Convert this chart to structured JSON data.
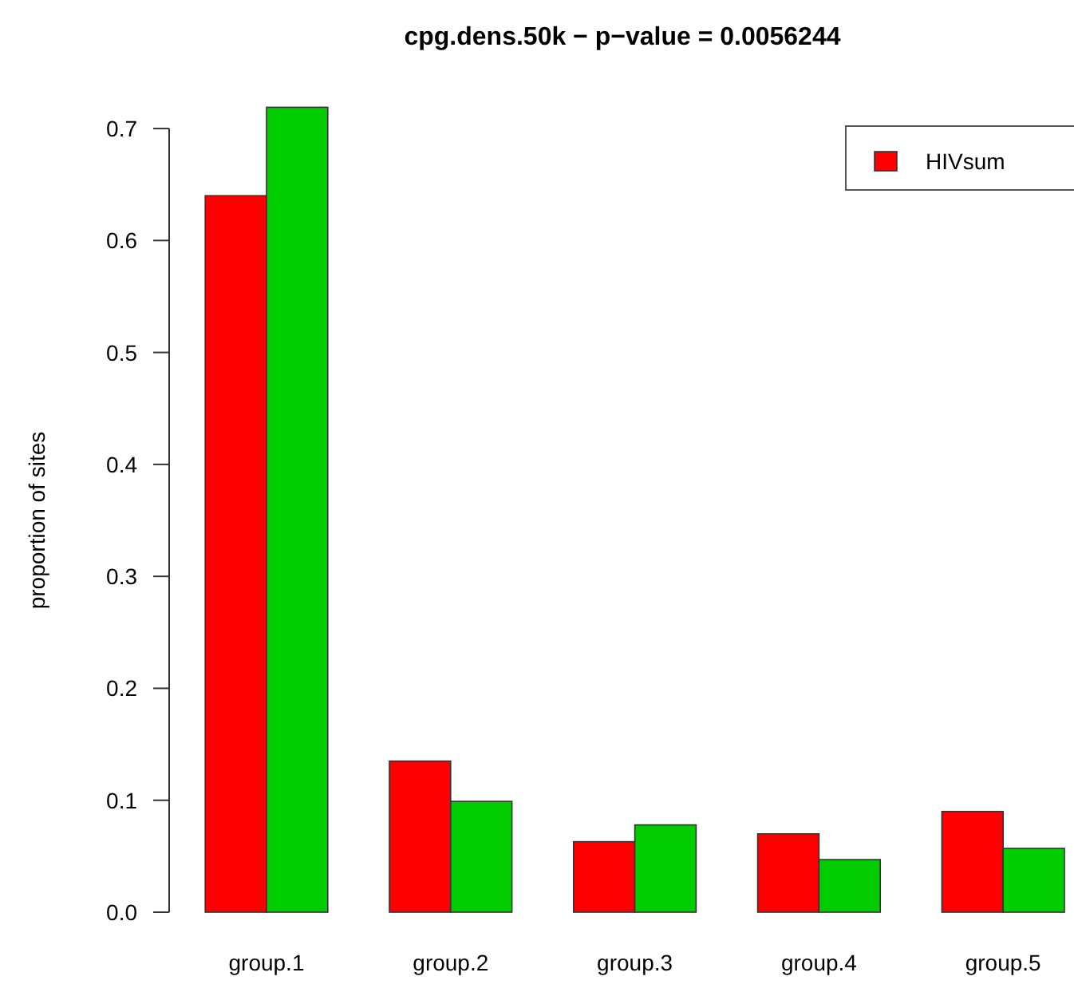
{
  "chart_data": {
    "type": "bar",
    "title": "cpg.dens.50k  − p−value = 0.0056244",
    "ylabel": "proportion of sites",
    "categories": [
      "group.1",
      "group.2",
      "group.3",
      "group.4",
      "group.5"
    ],
    "series": [
      {
        "name": "HIVsum",
        "color": "#ff0000",
        "values": [
          0.64,
          0.135,
          0.063,
          0.07,
          0.09
        ]
      },
      {
        "color": "#00cc00",
        "values": [
          0.719,
          0.099,
          0.078,
          0.047,
          0.057
        ]
      }
    ],
    "ylim": [
      0,
      0.72
    ],
    "yticks": [
      {
        "value": 0,
        "label": "0.0"
      },
      0.1,
      0.2,
      0.3,
      0.4,
      0.5,
      0.6,
      0.7
    ],
    "legend": "top right"
  }
}
